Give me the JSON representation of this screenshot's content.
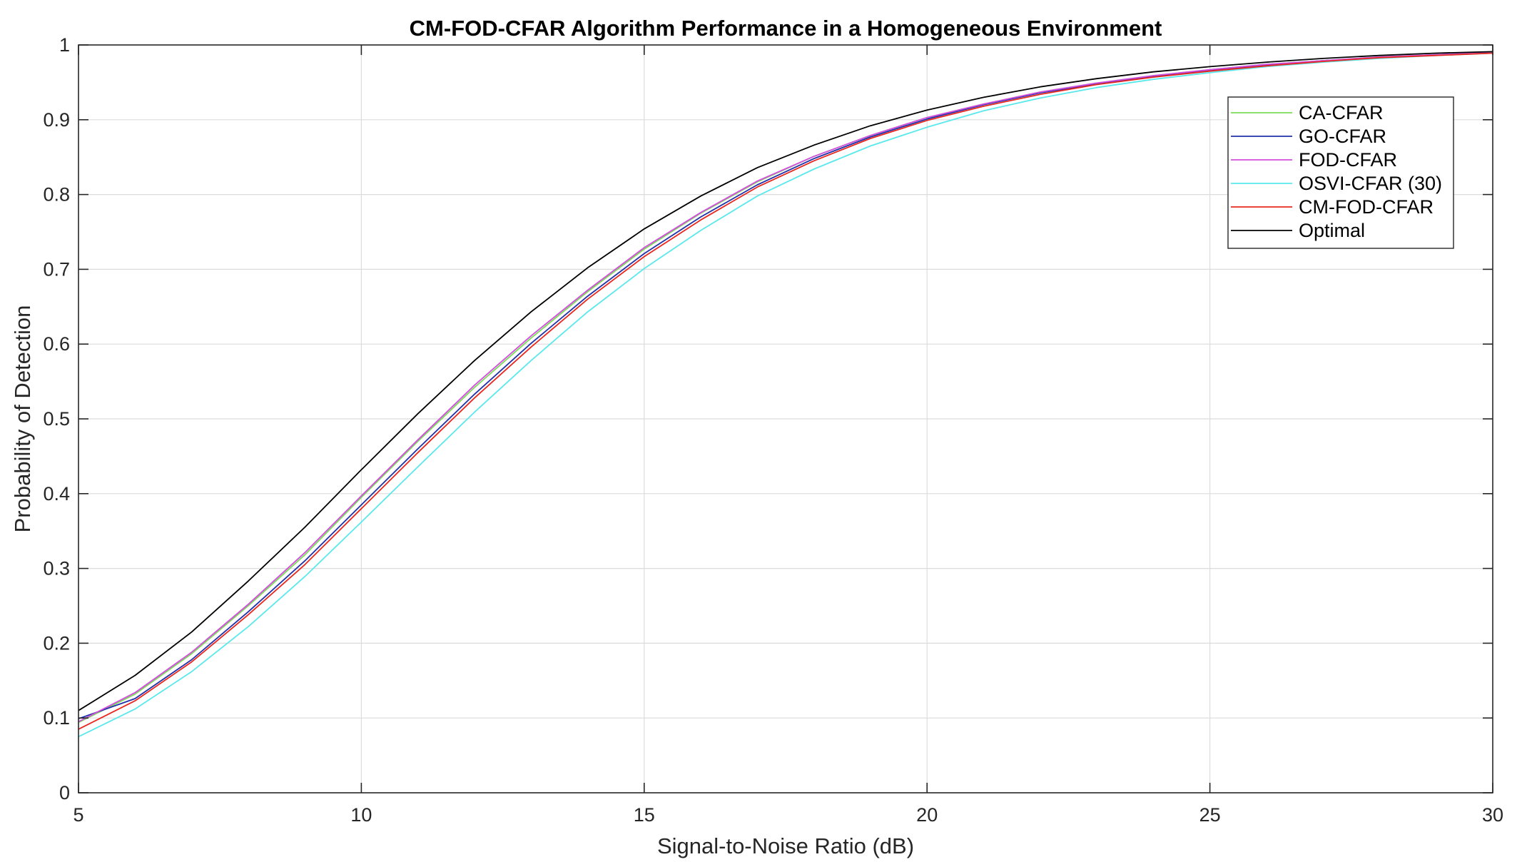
{
  "chart_data": {
    "type": "line",
    "title": "CM-FOD-CFAR Algorithm Performance in a Homogeneous Environment",
    "xlabel": "Signal-to-Noise Ratio (dB)",
    "ylabel": "Probability of Detection",
    "xlim": [
      5,
      30
    ],
    "ylim": [
      0,
      1
    ],
    "xticks": [
      5,
      10,
      15,
      20,
      25,
      30
    ],
    "xtick_labels": [
      "5",
      "10",
      "15",
      "20",
      "25",
      "30"
    ],
    "yticks": [
      0,
      0.1,
      0.2,
      0.3,
      0.4,
      0.5,
      0.6,
      0.7,
      0.8,
      0.9,
      1
    ],
    "ytick_labels": [
      "0",
      "0.1",
      "0.2",
      "0.3",
      "0.4",
      "0.5",
      "0.6",
      "0.7",
      "0.8",
      "0.9",
      "1"
    ],
    "grid": true,
    "legend_position": "top-right",
    "x": [
      5,
      6,
      7,
      8,
      9,
      10,
      11,
      12,
      13,
      14,
      15,
      16,
      17,
      18,
      19,
      20,
      21,
      22,
      23,
      24,
      25,
      26,
      27,
      28,
      29,
      30
    ],
    "series": [
      {
        "name": "CA-CFAR",
        "color": "#7cdc5a",
        "values": [
          0.094,
          0.132,
          0.186,
          0.25,
          0.318,
          0.395,
          0.47,
          0.542,
          0.608,
          0.67,
          0.727,
          0.775,
          0.817,
          0.851,
          0.879,
          0.903,
          0.921,
          0.937,
          0.949,
          0.959,
          0.967,
          0.974,
          0.979,
          0.984,
          0.987,
          0.99
        ]
      },
      {
        "name": "GO-CFAR",
        "color": "#2030a8",
        "values": [
          0.099,
          0.126,
          0.178,
          0.242,
          0.31,
          0.385,
          0.46,
          0.533,
          0.601,
          0.664,
          0.721,
          0.77,
          0.813,
          0.848,
          0.877,
          0.901,
          0.92,
          0.936,
          0.948,
          0.958,
          0.966,
          0.973,
          0.979,
          0.983,
          0.987,
          0.99
        ]
      },
      {
        "name": "FOD-CFAR",
        "color": "#d44de0",
        "values": [
          0.095,
          0.134,
          0.188,
          0.252,
          0.321,
          0.397,
          0.472,
          0.545,
          0.611,
          0.672,
          0.729,
          0.776,
          0.818,
          0.851,
          0.879,
          0.903,
          0.921,
          0.937,
          0.949,
          0.959,
          0.967,
          0.974,
          0.979,
          0.984,
          0.987,
          0.99
        ]
      },
      {
        "name": "OSVI-CFAR (30)",
        "color": "#5ae8ec",
        "values": [
          0.075,
          0.112,
          0.162,
          0.222,
          0.289,
          0.362,
          0.436,
          0.509,
          0.578,
          0.643,
          0.701,
          0.752,
          0.798,
          0.834,
          0.865,
          0.89,
          0.912,
          0.929,
          0.943,
          0.954,
          0.963,
          0.971,
          0.977,
          0.982,
          0.986,
          0.989
        ]
      },
      {
        "name": "CM-FOD-CFAR",
        "color": "#e8271e",
        "values": [
          0.085,
          0.123,
          0.175,
          0.238,
          0.305,
          0.38,
          0.455,
          0.528,
          0.596,
          0.66,
          0.717,
          0.766,
          0.81,
          0.845,
          0.875,
          0.899,
          0.918,
          0.934,
          0.947,
          0.957,
          0.965,
          0.972,
          0.978,
          0.983,
          0.986,
          0.989
        ]
      },
      {
        "name": "Optimal",
        "color": "#000000",
        "values": [
          0.11,
          0.157,
          0.215,
          0.283,
          0.355,
          0.432,
          0.507,
          0.578,
          0.643,
          0.702,
          0.754,
          0.798,
          0.836,
          0.866,
          0.892,
          0.913,
          0.93,
          0.944,
          0.955,
          0.964,
          0.971,
          0.977,
          0.982,
          0.986,
          0.989,
          0.991
        ]
      }
    ]
  }
}
